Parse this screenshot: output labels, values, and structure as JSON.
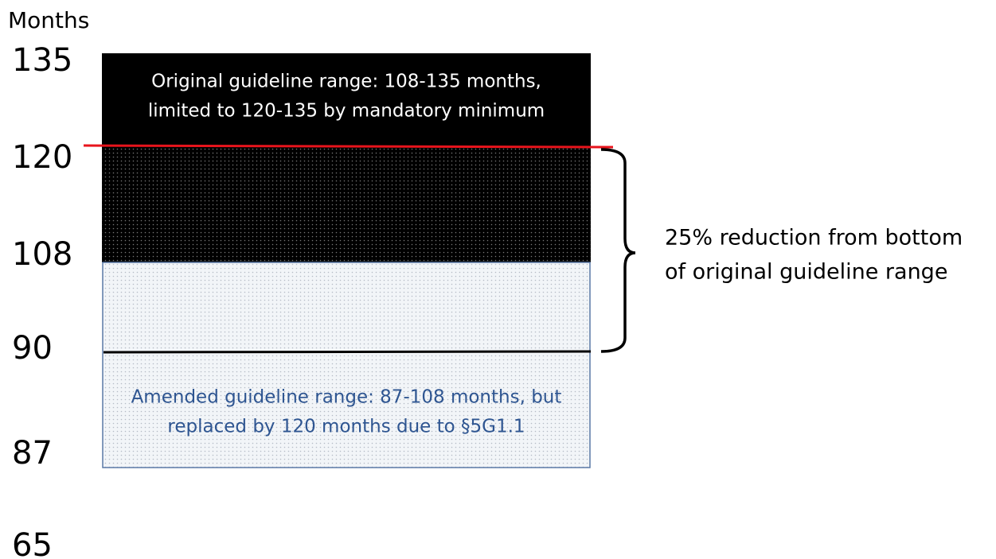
{
  "axis": {
    "title": "Months",
    "labels": [
      135,
      120,
      108,
      90,
      87,
      65
    ]
  },
  "original_box": {
    "lines": [
      "Original guideline range: 108-135 months,",
      "limited to 120-135 by mandatory minimum"
    ]
  },
  "amended_box": {
    "lines": [
      "Amended guideline range: 87-108 months, but",
      "replaced by 120 months due to §5G1.1"
    ]
  },
  "brace_label": {
    "lines": [
      "25% reduction from bottom",
      "of original guideline range"
    ]
  }
}
